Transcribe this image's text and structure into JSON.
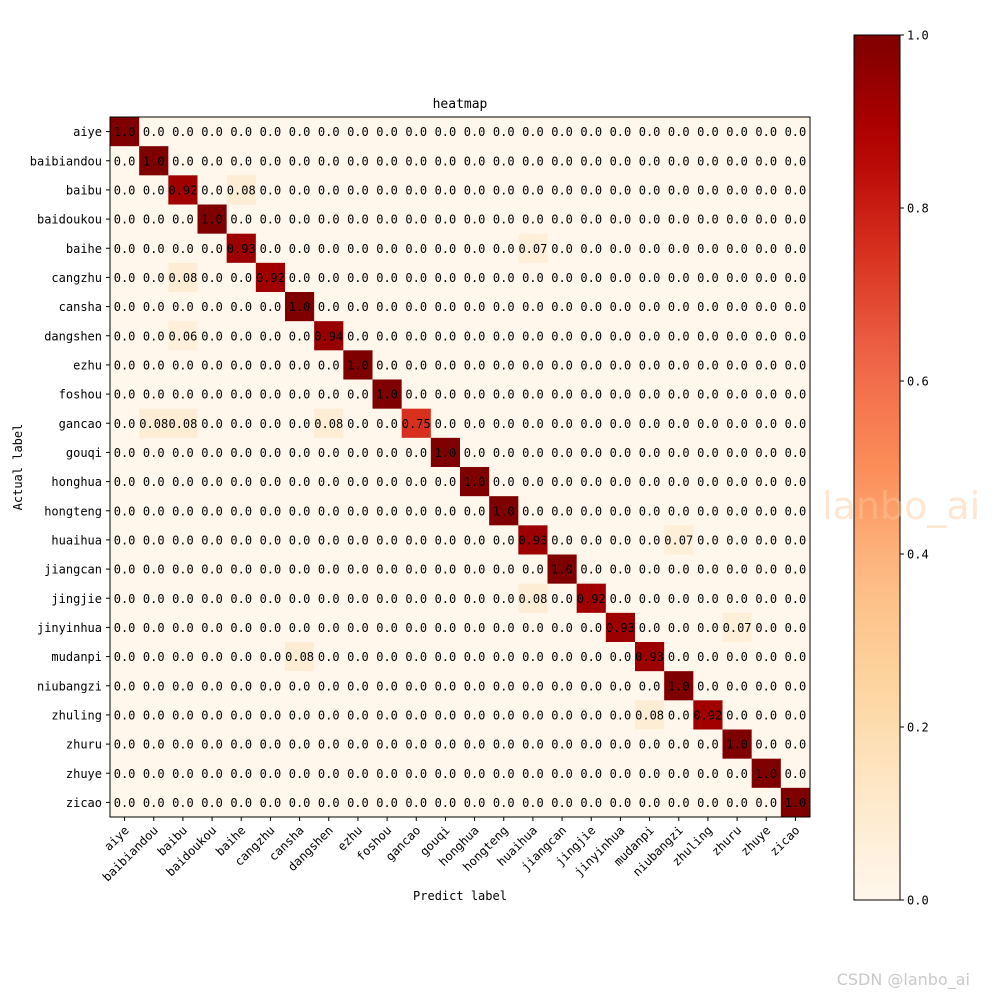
{
  "chart_data": {
    "type": "heatmap",
    "title": "heatmap",
    "xlabel": "Predict label",
    "ylabel": "Actual label",
    "labels": [
      "aiye",
      "baibiandou",
      "baibu",
      "baidoukou",
      "baihe",
      "cangzhu",
      "cansha",
      "dangshen",
      "ezhu",
      "foshou",
      "gancao",
      "gouqi",
      "honghua",
      "hongteng",
      "huaihua",
      "jiangcan",
      "jingjie",
      "jinyinhua",
      "mudanpi",
      "niubangzi",
      "zhuling",
      "zhuru",
      "zhuye",
      "zicao"
    ],
    "cells": [
      {
        "row": 0,
        "col": 0,
        "value": 1.0
      },
      {
        "row": 1,
        "col": 1,
        "value": 1.0
      },
      {
        "row": 2,
        "col": 2,
        "value": 0.92
      },
      {
        "row": 2,
        "col": 4,
        "value": 0.08
      },
      {
        "row": 3,
        "col": 3,
        "value": 1.0
      },
      {
        "row": 4,
        "col": 4,
        "value": 0.93
      },
      {
        "row": 4,
        "col": 14,
        "value": 0.07
      },
      {
        "row": 5,
        "col": 2,
        "value": 0.08
      },
      {
        "row": 5,
        "col": 5,
        "value": 0.92
      },
      {
        "row": 6,
        "col": 6,
        "value": 1.0
      },
      {
        "row": 7,
        "col": 2,
        "value": 0.06
      },
      {
        "row": 7,
        "col": 7,
        "value": 0.94
      },
      {
        "row": 8,
        "col": 8,
        "value": 1.0
      },
      {
        "row": 9,
        "col": 9,
        "value": 1.0
      },
      {
        "row": 10,
        "col": 1,
        "value": 0.08
      },
      {
        "row": 10,
        "col": 2,
        "value": 0.08
      },
      {
        "row": 10,
        "col": 7,
        "value": 0.08
      },
      {
        "row": 10,
        "col": 10,
        "value": 0.75
      },
      {
        "row": 11,
        "col": 11,
        "value": 1.0
      },
      {
        "row": 12,
        "col": 12,
        "value": 1.0
      },
      {
        "row": 13,
        "col": 13,
        "value": 1.0
      },
      {
        "row": 14,
        "col": 14,
        "value": 0.93
      },
      {
        "row": 14,
        "col": 19,
        "value": 0.07
      },
      {
        "row": 15,
        "col": 15,
        "value": 1.0
      },
      {
        "row": 16,
        "col": 14,
        "value": 0.08
      },
      {
        "row": 16,
        "col": 16,
        "value": 0.92
      },
      {
        "row": 17,
        "col": 17,
        "value": 0.93
      },
      {
        "row": 17,
        "col": 21,
        "value": 0.07
      },
      {
        "row": 18,
        "col": 6,
        "value": 0.08
      },
      {
        "row": 18,
        "col": 18,
        "value": 0.93
      },
      {
        "row": 19,
        "col": 19,
        "value": 1.0
      },
      {
        "row": 20,
        "col": 18,
        "value": 0.08
      },
      {
        "row": 20,
        "col": 20,
        "value": 0.92
      },
      {
        "row": 21,
        "col": 21,
        "value": 1.0
      },
      {
        "row": 22,
        "col": 22,
        "value": 1.0
      },
      {
        "row": 23,
        "col": 23,
        "value": 1.0
      }
    ],
    "default_value": 0.0,
    "value_range": [
      0.0,
      1.0
    ],
    "colormap": "OrRd",
    "colorbar_ticks": [
      0.0,
      0.2,
      0.4,
      0.6,
      0.8,
      1.0
    ],
    "grid": false,
    "colorbar_position": "right"
  },
  "watermark": "lanbo_ai",
  "credit": "CSDN @lanbo_ai"
}
